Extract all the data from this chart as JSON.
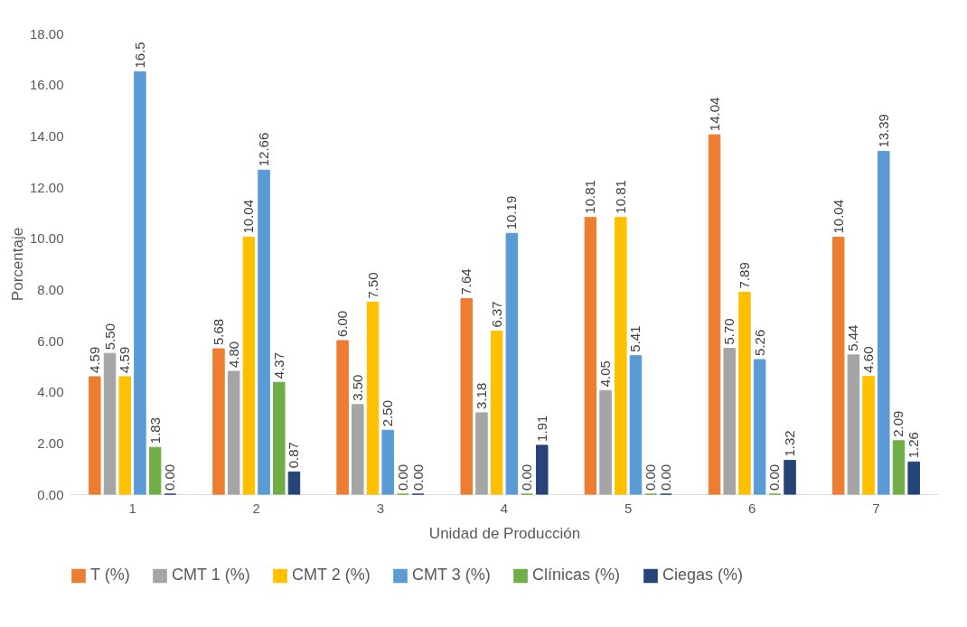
{
  "chart_data": {
    "type": "bar",
    "xlabel": "Unidad de Producción",
    "ylabel": "Porcentaje",
    "categories": [
      "1",
      "2",
      "3",
      "4",
      "5",
      "6",
      "7"
    ],
    "ylim": [
      0,
      18
    ],
    "yticks": [
      {
        "value": 0,
        "label": "0.00"
      },
      {
        "value": 2,
        "label": "2.00"
      },
      {
        "value": 4,
        "label": "4.00"
      },
      {
        "value": 6,
        "label": "6.00"
      },
      {
        "value": 8,
        "label": "8.00"
      },
      {
        "value": 10,
        "label": "10.00"
      },
      {
        "value": 12,
        "label": "12.00"
      },
      {
        "value": 14,
        "label": "14.00"
      },
      {
        "value": 16,
        "label": "16.00"
      },
      {
        "value": 18,
        "label": "18.00"
      }
    ],
    "grid": false,
    "legend": "bottom",
    "series": [
      {
        "name": "T (%)",
        "color": "#ed7d31",
        "values": [
          4.59,
          5.68,
          6.0,
          7.64,
          10.81,
          14.04,
          10.04
        ],
        "value_labels": [
          "4.59",
          "5.68",
          "6.00",
          "7.64",
          "10.81",
          "14.04",
          "10.04"
        ]
      },
      {
        "name": "CMT 1 (%)",
        "color": "#a5a5a5",
        "values": [
          5.5,
          4.8,
          3.5,
          3.18,
          4.05,
          5.7,
          5.44
        ],
        "value_labels": [
          "5.50",
          "4.80",
          "3.50",
          "3.18",
          "4.05",
          "5.70",
          "5.44"
        ]
      },
      {
        "name": "CMT 2 (%)",
        "color": "#ffc000",
        "values": [
          4.59,
          10.04,
          7.5,
          6.37,
          10.81,
          7.89,
          4.6
        ],
        "value_labels": [
          "4.59",
          "10.04",
          "7.50",
          "6.37",
          "10.81",
          "7.89",
          "4.60"
        ]
      },
      {
        "name": "CMT 3 (%)",
        "color": "#5b9bd5",
        "values": [
          16.5,
          12.66,
          2.5,
          10.19,
          5.41,
          5.26,
          13.39
        ],
        "value_labels": [
          "16.5",
          "12.66",
          "2.50",
          "10.19",
          "5.41",
          "5.26",
          "13.39"
        ]
      },
      {
        "name": "Clínicas (%)",
        "color": "#70ad47",
        "values": [
          1.83,
          4.37,
          0.0,
          0.0,
          0.0,
          0.0,
          2.09
        ],
        "value_labels": [
          "1.83",
          "4.37",
          "0.00",
          "0.00",
          "0.00",
          "0.00",
          "2.09"
        ]
      },
      {
        "name": "Ciegas (%)",
        "color": "#264478",
        "values": [
          0.0,
          0.87,
          0.0,
          1.91,
          0.0,
          1.32,
          1.26
        ],
        "value_labels": [
          "0.00",
          "0.87",
          "0.00",
          "1.91",
          "0.00",
          "1.32",
          "1.26"
        ]
      }
    ]
  }
}
